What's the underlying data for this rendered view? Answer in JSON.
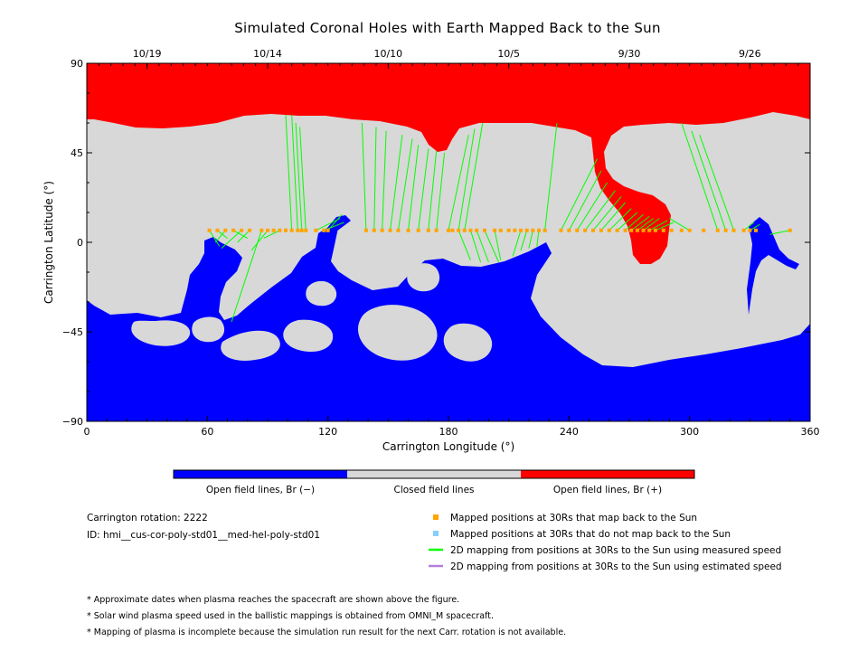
{
  "chart_data": {
    "type": "heatmap",
    "title": "Simulated Coronal Holes with Earth Mapped Back to the Sun",
    "xlabel": "Carrington Longitude (°)",
    "ylabel": "Carrington Latitude (°)",
    "xlim": [
      0,
      360
    ],
    "ylim": [
      -90,
      90
    ],
    "x_ticks": [
      "0",
      "60",
      "120",
      "180",
      "240",
      "300",
      "360"
    ],
    "y_ticks": [
      "90",
      "45",
      "0",
      "−45",
      "−90"
    ],
    "top_date_axis": [
      {
        "label": "10/19",
        "lon": 30
      },
      {
        "label": "10/14",
        "lon": 90
      },
      {
        "label": "10/10",
        "lon": 150
      },
      {
        "label": "10/5",
        "lon": 210
      },
      {
        "label": "9/30",
        "lon": 270
      },
      {
        "label": "9/26",
        "lon": 330
      }
    ],
    "colorbar": [
      {
        "label": "Open field lines, Br (−)",
        "color": "#0000ff"
      },
      {
        "label": "Closed field lines",
        "color": "#d8d8d8"
      },
      {
        "label": "Open field lines, Br (+)",
        "color": "#ff0000"
      }
    ],
    "mapped_positions_lat": 6,
    "mapped_positions_lon": [
      61,
      65,
      69,
      73,
      77,
      81,
      87,
      90,
      93,
      96,
      99,
      102,
      105,
      107,
      109,
      114,
      118,
      120,
      139,
      143,
      147,
      151,
      155,
      160,
      165,
      170,
      174,
      180,
      182,
      185,
      188,
      191,
      194,
      198,
      203,
      206,
      210,
      213,
      216,
      219,
      222,
      225,
      228,
      236,
      240,
      244,
      248,
      252,
      256,
      260,
      264,
      268,
      271,
      274,
      277,
      280,
      283,
      287,
      291,
      296,
      300,
      307,
      314,
      318,
      322,
      327,
      330,
      333,
      350
    ],
    "mapping_lines": [
      {
        "from": [
          61,
          6
        ],
        "to": [
          66,
          -2
        ]
      },
      {
        "from": [
          65,
          6
        ],
        "to": [
          70,
          2
        ]
      },
      {
        "from": [
          69,
          6
        ],
        "to": [
          64,
          0
        ]
      },
      {
        "from": [
          73,
          6
        ],
        "to": [
          80,
          2
        ]
      },
      {
        "from": [
          77,
          6
        ],
        "to": [
          67,
          -3
        ]
      },
      {
        "from": [
          81,
          6
        ],
        "to": [
          75,
          0
        ]
      },
      {
        "from": [
          87,
          6
        ],
        "to": [
          72,
          -40
        ]
      },
      {
        "from": [
          90,
          6
        ],
        "to": [
          82,
          -4
        ]
      },
      {
        "from": [
          96,
          6
        ],
        "to": [
          88,
          2
        ]
      },
      {
        "from": [
          102,
          6
        ],
        "to": [
          99,
          64
        ]
      },
      {
        "from": [
          105,
          6
        ],
        "to": [
          102,
          64
        ]
      },
      {
        "from": [
          107,
          6
        ],
        "to": [
          104,
          60
        ]
      },
      {
        "from": [
          109,
          6
        ],
        "to": [
          106,
          58
        ]
      },
      {
        "from": [
          114,
          6
        ],
        "to": [
          126,
          12
        ]
      },
      {
        "from": [
          118,
          6
        ],
        "to": [
          128,
          10
        ]
      },
      {
        "from": [
          120,
          6
        ],
        "to": [
          127,
          14
        ]
      },
      {
        "from": [
          139,
          6
        ],
        "to": [
          137,
          60
        ]
      },
      {
        "from": [
          143,
          6
        ],
        "to": [
          144,
          58
        ]
      },
      {
        "from": [
          147,
          6
        ],
        "to": [
          149,
          56
        ]
      },
      {
        "from": [
          151,
          6
        ],
        "to": [
          157,
          54
        ]
      },
      {
        "from": [
          155,
          6
        ],
        "to": [
          162,
          52
        ]
      },
      {
        "from": [
          160,
          6
        ],
        "to": [
          165,
          49
        ]
      },
      {
        "from": [
          165,
          6
        ],
        "to": [
          170,
          47
        ]
      },
      {
        "from": [
          170,
          6
        ],
        "to": [
          174,
          46
        ]
      },
      {
        "from": [
          174,
          6
        ],
        "to": [
          178,
          45
        ]
      },
      {
        "from": [
          180,
          6
        ],
        "to": [
          190,
          54
        ]
      },
      {
        "from": [
          185,
          6
        ],
        "to": [
          193,
          57
        ]
      },
      {
        "from": [
          188,
          6
        ],
        "to": [
          197,
          60
        ]
      },
      {
        "from": [
          185,
          6
        ],
        "to": [
          191,
          -9
        ]
      },
      {
        "from": [
          191,
          6
        ],
        "to": [
          196,
          -10
        ]
      },
      {
        "from": [
          194,
          6
        ],
        "to": [
          200,
          -10
        ]
      },
      {
        "from": [
          198,
          6
        ],
        "to": [
          205,
          -10
        ]
      },
      {
        "from": [
          203,
          6
        ],
        "to": [
          206,
          -9
        ]
      },
      {
        "from": [
          216,
          6
        ],
        "to": [
          212,
          -7
        ]
      },
      {
        "from": [
          219,
          6
        ],
        "to": [
          216,
          -4
        ]
      },
      {
        "from": [
          222,
          6
        ],
        "to": [
          220,
          -3
        ]
      },
      {
        "from": [
          225,
          6
        ],
        "to": [
          224,
          -2
        ]
      },
      {
        "from": [
          228,
          6
        ],
        "to": [
          234,
          60
        ]
      },
      {
        "from": [
          236,
          6
        ],
        "to": [
          254,
          42
        ]
      },
      {
        "from": [
          240,
          6
        ],
        "to": [
          256,
          36
        ]
      },
      {
        "from": [
          244,
          6
        ],
        "to": [
          259,
          30
        ]
      },
      {
        "from": [
          248,
          6
        ],
        "to": [
          263,
          26
        ]
      },
      {
        "from": [
          252,
          6
        ],
        "to": [
          266,
          23
        ]
      },
      {
        "from": [
          256,
          6
        ],
        "to": [
          268,
          20
        ]
      },
      {
        "from": [
          260,
          6
        ],
        "to": [
          271,
          17
        ]
      },
      {
        "from": [
          264,
          6
        ],
        "to": [
          274,
          15
        ]
      },
      {
        "from": [
          268,
          6
        ],
        "to": [
          277,
          14
        ]
      },
      {
        "from": [
          271,
          6
        ],
        "to": [
          280,
          13
        ]
      },
      {
        "from": [
          274,
          6
        ],
        "to": [
          282,
          12
        ]
      },
      {
        "from": [
          277,
          6
        ],
        "to": [
          285,
          12
        ]
      },
      {
        "from": [
          280,
          6
        ],
        "to": [
          289,
          11
        ]
      },
      {
        "from": [
          283,
          6
        ],
        "to": [
          292,
          10
        ]
      },
      {
        "from": [
          300,
          6
        ],
        "to": [
          290,
          12
        ]
      },
      {
        "from": [
          314,
          6
        ],
        "to": [
          296,
          60
        ]
      },
      {
        "from": [
          318,
          6
        ],
        "to": [
          301,
          56
        ]
      },
      {
        "from": [
          322,
          6
        ],
        "to": [
          305,
          54
        ]
      },
      {
        "from": [
          327,
          6
        ],
        "to": [
          332,
          10
        ]
      },
      {
        "from": [
          330,
          6
        ],
        "to": [
          335,
          9
        ]
      },
      {
        "from": [
          350,
          6
        ],
        "to": [
          340,
          4
        ]
      }
    ],
    "legend_placement": "below plot, right"
  },
  "info": {
    "rotation": "Carrington rotation: 2222",
    "id": "ID: hmi__cus-cor-poly-std01__med-hel-poly-std01"
  },
  "legend": [
    {
      "label": "Mapped positions at 30Rs that map back to the Sun",
      "color": "#ffa500",
      "marker": "square"
    },
    {
      "label": "Mapped positions at 30Rs that do not map back to the Sun",
      "color": "#87cefa",
      "marker": "square"
    },
    {
      "label": "2D mapping from positions at 30Rs to the Sun using measured speed",
      "color": "#00ff00",
      "marker": "line"
    },
    {
      "label": "2D mapping from positions at 30Rs to the Sun using estimated speed",
      "color": "#b57edc",
      "marker": "line"
    }
  ],
  "notes": [
    "* Approximate dates when plasma reaches the spacecraft are shown above the figure.",
    "* Solar wind plasma speed used in the ballistic mappings is obtained from OMNI_M spacecraft.",
    "* Mapping of plasma is incomplete because the simulation run result for the next Carr. rotation is not available."
  ]
}
